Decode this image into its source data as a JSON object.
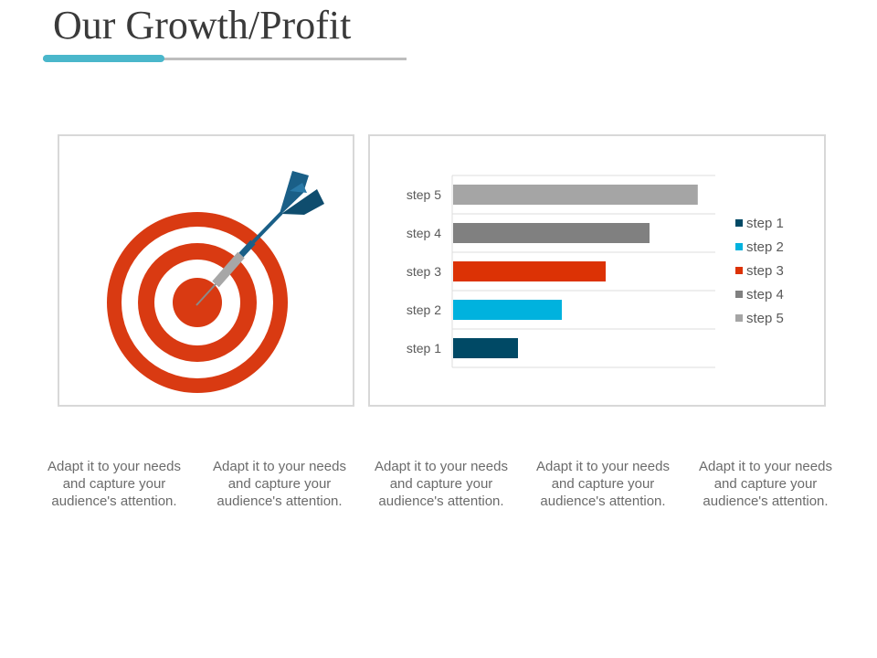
{
  "slide": {
    "title": "Our Growth/Profit"
  },
  "colors": {
    "accent": "#4ab7cb",
    "target_red": "#d93a12",
    "dart_blue": "#1a5f87"
  },
  "icons": {
    "target": "target-with-dart-icon"
  },
  "chart_data": {
    "type": "bar",
    "orientation": "horizontal",
    "categories": [
      "step 1",
      "step 2",
      "step 3",
      "step 4",
      "step 5"
    ],
    "values": [
      1.5,
      2.5,
      3.5,
      4.5,
      5.6
    ],
    "colors": [
      "#004965",
      "#00b2de",
      "#dc3205",
      "#808080",
      "#a5a5a5"
    ],
    "legend": {
      "position": "right",
      "entries": [
        "step 1",
        "step 2",
        "step 3",
        "step 4",
        "step 5"
      ]
    },
    "xlim": [
      0,
      6
    ],
    "grid": true
  },
  "captions": [
    "Adapt it to your needs and capture your audience's attention.",
    "Adapt it to your needs and capture your audience's attention.",
    "Adapt it to your needs and capture your audience's attention.",
    "Adapt it to your needs and capture your audience's attention.",
    "Adapt it to your needs and capture your audience's attention."
  ]
}
